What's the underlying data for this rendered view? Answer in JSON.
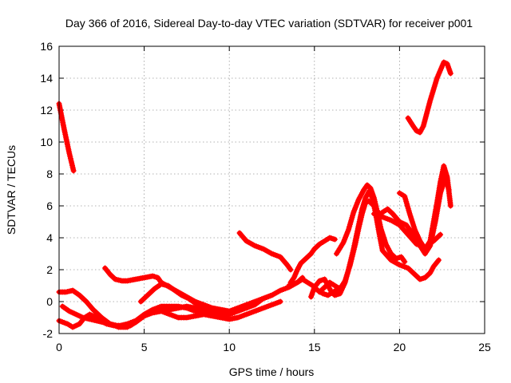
{
  "chart_data": {
    "type": "scatter",
    "title": "Day 366 of 2016, Sidereal Day-to-day VTEC variation (SDTVAR) for receiver p001",
    "xlabel": "GPS time / hours",
    "ylabel": "SDTVAR / TECUs",
    "xlim": [
      0,
      25
    ],
    "ylim": [
      -2,
      16
    ],
    "xticks": [
      "0",
      "5",
      "10",
      "15",
      "20",
      "25"
    ],
    "yticks": [
      "-2",
      "0",
      "2",
      "4",
      "6",
      "8",
      "10",
      "12",
      "14",
      "16"
    ],
    "grid": true,
    "marker": "plus",
    "color": "#ff0000",
    "series": [
      {
        "x": [
          0.0,
          0.3,
          0.6,
          0.85
        ],
        "y": [
          12.4,
          10.8,
          9.3,
          8.2
        ]
      },
      {
        "x": [
          0.0,
          0.5,
          0.8,
          1.2,
          1.5,
          1.8,
          2.0,
          2.4,
          2.8,
          3.2,
          3.6,
          4.0,
          4.5,
          5.0,
          5.5,
          6.0,
          6.5,
          7.0,
          7.5,
          8.0,
          8.5,
          9.0,
          9.5,
          10.0,
          10.5,
          11.0,
          11.5,
          12.0,
          12.5,
          13.0,
          13.5,
          14.0,
          14.3
        ],
        "y": [
          -1.2,
          -1.4,
          -1.6,
          -1.4,
          -1.0,
          -0.8,
          -0.9,
          -1.2,
          -1.4,
          -1.5,
          -1.5,
          -1.4,
          -1.2,
          -0.8,
          -0.5,
          -0.3,
          -0.3,
          -0.3,
          -0.4,
          -0.6,
          -0.7,
          -0.8,
          -0.8,
          -0.8,
          -0.6,
          -0.4,
          -0.2,
          0.2,
          0.4,
          0.7,
          0.9,
          1.2,
          1.5
        ]
      },
      {
        "x": [
          0.0,
          0.4,
          0.8,
          1.2,
          1.6,
          2.0,
          2.5,
          3.0,
          3.5,
          4.0,
          4.5,
          5.0,
          5.5,
          6.0,
          6.5,
          7.0,
          7.5,
          8.0,
          8.5,
          9.0,
          9.5,
          10.0,
          10.5,
          11.0,
          11.5,
          12.0,
          12.5
        ],
        "y": [
          0.6,
          0.6,
          0.7,
          0.4,
          0.0,
          -0.5,
          -1.0,
          -1.4,
          -1.6,
          -1.6,
          -1.3,
          -0.9,
          -0.6,
          -0.5,
          -0.5,
          -0.4,
          -0.3,
          -0.4,
          -0.6,
          -0.7,
          -0.7,
          -0.6,
          -0.4,
          -0.2,
          0.0,
          0.2,
          0.4
        ]
      },
      {
        "x": [
          0.2,
          0.6,
          1.0,
          1.4,
          1.8,
          2.2,
          2.6,
          3.0,
          3.4,
          3.8,
          4.2,
          4.6,
          5.0,
          5.5,
          6.0,
          6.5,
          7.0,
          7.5,
          8.0,
          8.5,
          9.0,
          9.5,
          10.0,
          10.5,
          11.0,
          11.5,
          12.0,
          12.5,
          13.0
        ],
        "y": [
          -0.3,
          -0.6,
          -0.8,
          -1.0,
          -1.1,
          -1.2,
          -1.3,
          -1.4,
          -1.5,
          -1.6,
          -1.5,
          -1.2,
          -0.9,
          -0.7,
          -0.6,
          -0.8,
          -1.0,
          -1.0,
          -0.9,
          -0.8,
          -0.9,
          -1.0,
          -1.1,
          -1.0,
          -0.8,
          -0.6,
          -0.4,
          -0.2,
          0.0
        ]
      },
      {
        "x": [
          2.7,
          3.0,
          3.3,
          3.7,
          4.0,
          4.5,
          5.0,
          5.5,
          5.8,
          6.0,
          6.5,
          7.0,
          7.5,
          8.0,
          8.5,
          9.0,
          9.5,
          10.0,
          10.5,
          11.0
        ],
        "y": [
          2.1,
          1.7,
          1.4,
          1.3,
          1.3,
          1.4,
          1.5,
          1.6,
          1.5,
          1.2,
          0.9,
          0.6,
          0.3,
          0.0,
          -0.2,
          -0.4,
          -0.5,
          -0.6,
          -0.5,
          -0.4
        ]
      },
      {
        "x": [
          4.8,
          5.2,
          5.6,
          6.0,
          6.4,
          6.8,
          7.2,
          7.6,
          8.0,
          8.4,
          8.8,
          9.2,
          9.6
        ],
        "y": [
          0.0,
          0.4,
          0.8,
          1.1,
          1.0,
          0.7,
          0.4,
          0.2,
          -0.1,
          -0.3,
          -0.5,
          -0.6,
          -0.8
        ]
      },
      {
        "x": [
          10.6,
          11.0,
          11.5,
          12.0,
          12.5,
          13.0,
          13.4,
          13.6
        ],
        "y": [
          4.3,
          3.8,
          3.5,
          3.3,
          3.0,
          2.8,
          2.3,
          2.0
        ]
      },
      {
        "x": [
          14.8,
          15.0,
          15.3,
          15.6,
          15.8,
          16.0,
          16.2,
          16.5,
          16.8,
          17.0,
          17.3,
          17.6,
          17.8,
          18.0,
          18.2,
          18.4,
          18.6,
          18.8,
          19.0,
          19.5,
          20.0,
          20.5,
          21.0,
          21.2,
          21.5,
          21.8,
          22.0,
          22.3
        ],
        "y": [
          0.3,
          0.9,
          1.3,
          1.4,
          1.0,
          0.6,
          0.4,
          0.5,
          1.2,
          2.0,
          3.3,
          4.8,
          5.8,
          6.5,
          6.9,
          6.5,
          5.5,
          4.3,
          3.2,
          2.6,
          2.3,
          2.1,
          1.6,
          1.4,
          1.5,
          1.8,
          2.2,
          2.6
        ]
      },
      {
        "x": [
          15.3,
          15.6,
          15.9,
          16.2,
          16.5,
          16.8,
          17.1,
          17.4,
          17.6,
          17.8,
          18.0,
          18.2,
          18.5,
          18.8,
          19.0,
          19.5,
          20.0,
          20.5,
          21.0,
          21.5,
          22.0,
          22.4
        ],
        "y": [
          0.6,
          0.9,
          1.2,
          1.0,
          0.8,
          1.3,
          2.3,
          3.6,
          4.6,
          5.5,
          6.2,
          6.3,
          6.0,
          5.5,
          5.3,
          5.1,
          4.8,
          4.2,
          3.6,
          3.4,
          3.8,
          4.2
        ]
      },
      {
        "x": [
          16.3,
          16.7,
          17.0,
          17.3,
          17.6,
          17.9,
          18.1,
          18.3,
          18.5,
          18.7,
          18.9,
          19.2,
          19.5,
          19.8,
          20.1,
          20.3
        ],
        "y": [
          3.0,
          3.7,
          4.5,
          5.6,
          6.4,
          7.0,
          7.3,
          7.1,
          6.5,
          5.6,
          4.6,
          3.6,
          3.0,
          2.7,
          2.8,
          2.5
        ]
      },
      {
        "x": [
          18.5,
          18.8,
          19.0,
          19.3,
          19.6,
          20.0,
          20.4,
          20.8,
          21.2,
          21.5,
          21.8,
          22.1,
          22.4,
          22.7,
          22.9
        ],
        "y": [
          5.5,
          5.4,
          5.6,
          5.8,
          5.5,
          5.0,
          4.8,
          4.2,
          3.5,
          3.0,
          3.5,
          5.0,
          6.8,
          7.8,
          7.0
        ]
      },
      {
        "x": [
          20.0,
          20.3,
          20.6,
          20.9,
          21.2,
          21.5,
          21.8,
          22.0,
          22.2,
          22.4,
          22.6,
          22.8,
          23.0
        ],
        "y": [
          6.8,
          6.6,
          5.5,
          4.5,
          3.8,
          3.3,
          3.8,
          5.0,
          6.2,
          7.5,
          8.5,
          7.8,
          6.0
        ]
      },
      {
        "x": [
          20.5,
          20.8,
          21.0,
          21.2,
          21.4,
          21.6,
          21.8,
          22.0,
          22.2,
          22.4,
          22.6,
          22.8,
          23.0
        ],
        "y": [
          11.5,
          11.0,
          10.7,
          10.6,
          11.0,
          11.8,
          12.6,
          13.3,
          14.0,
          14.5,
          15.0,
          14.9,
          14.3
        ]
      },
      {
        "x": [
          13.6,
          13.8,
          14.0,
          14.2,
          14.5,
          14.8,
          15.0,
          15.3,
          15.6,
          15.9,
          16.2
        ],
        "y": [
          1.2,
          1.5,
          2.0,
          2.4,
          2.7,
          3.0,
          3.3,
          3.6,
          3.8,
          4.0,
          3.9
        ]
      },
      {
        "x": [
          13.5,
          14.0,
          14.3,
          14.6,
          14.9,
          15.2,
          15.5,
          15.8,
          16.1,
          16.4,
          16.7
        ],
        "y": [
          1.0,
          1.2,
          1.4,
          1.2,
          1.0,
          0.7,
          0.5,
          0.4,
          0.6,
          0.8,
          1.0
        ]
      }
    ]
  }
}
